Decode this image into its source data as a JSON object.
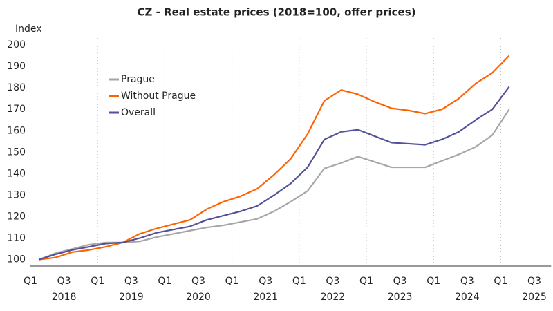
{
  "chart_data": {
    "type": "line",
    "title": "CZ - Real estate prices (2018=100, offer prices)",
    "y_axis_label": "Index",
    "categories": [
      "Q1",
      null,
      "Q3",
      null,
      "Q1",
      null,
      "Q3",
      null,
      "Q1",
      null,
      "Q3",
      null,
      "Q1",
      null,
      "Q3",
      null,
      "Q1",
      null,
      "Q3",
      null,
      "Q1",
      null,
      "Q3",
      null,
      "Q1",
      null,
      "Q3",
      null,
      "Q1",
      null,
      "Q3"
    ],
    "year_labels": [
      "2018",
      "2019",
      "2020",
      "2021",
      "2022",
      "2023",
      "2024",
      "2025"
    ],
    "series": [
      {
        "name": "Prague",
        "color": "#a6a6a6",
        "values": [
          100,
          103,
          105,
          107,
          108,
          108,
          108.5,
          110.5,
          112,
          113.5,
          115,
          116,
          117.5,
          119,
          122.5,
          127,
          132,
          142.5,
          145,
          148,
          145.5,
          143,
          143,
          143,
          146,
          149,
          152.5,
          158,
          170,
          null,
          null
        ]
      },
      {
        "name": "Without Prague",
        "color": "#ff6200",
        "values": [
          100,
          101,
          103.5,
          104.5,
          106,
          108,
          112,
          114.5,
          116.5,
          118.5,
          123.5,
          127,
          129.5,
          133,
          139.5,
          147,
          158.5,
          174,
          179,
          177,
          173.5,
          170.5,
          169.5,
          168,
          170,
          175,
          182,
          187,
          195,
          null,
          null
        ]
      },
      {
        "name": "Overall",
        "color": "#525199",
        "values": [
          100,
          102.5,
          104.5,
          106,
          107.5,
          108,
          110,
          112.5,
          114,
          115.5,
          118.5,
          120.5,
          122.5,
          125,
          130,
          135.5,
          143,
          156,
          159.5,
          160.5,
          157.5,
          154.5,
          154,
          153.5,
          156,
          159.5,
          165,
          170,
          180.5,
          null,
          null
        ]
      }
    ],
    "ylim": [
      97,
      200
    ],
    "yticks": [
      100,
      110,
      120,
      130,
      140,
      150,
      160,
      170,
      180,
      190,
      200
    ],
    "xgrid": true,
    "legend": "upper left"
  }
}
